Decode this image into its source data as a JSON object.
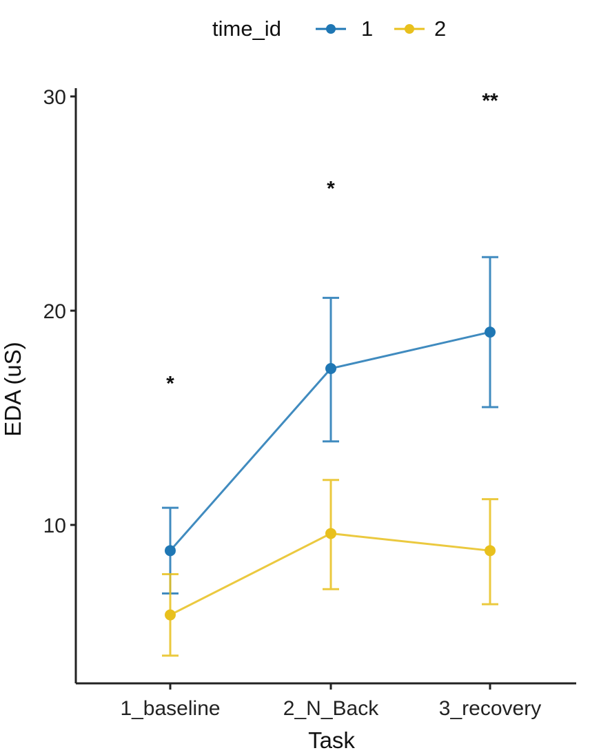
{
  "chart_data": {
    "type": "line",
    "categories": [
      "1_baseline",
      "2_N_Back",
      "3_recovery"
    ],
    "xlabel": "Task",
    "ylabel": "EDA (uS)",
    "ylim": [
      2.5,
      30
    ],
    "yticks": [
      10,
      20,
      30
    ],
    "grid": false,
    "legend": {
      "title": "time_id",
      "position": "top"
    },
    "series": [
      {
        "name": "1",
        "color": "#1f77b4",
        "values": [
          8.8,
          17.3,
          19.0
        ],
        "error_lower": [
          6.8,
          13.9,
          15.5
        ],
        "error_upper": [
          10.8,
          20.6,
          22.5
        ]
      },
      {
        "name": "2",
        "color": "#e8c01d",
        "values": [
          5.8,
          9.6,
          8.8
        ],
        "error_lower": [
          3.9,
          7.0,
          6.3
        ],
        "error_upper": [
          7.7,
          12.1,
          11.2
        ]
      }
    ],
    "annotations": [
      {
        "category": "1_baseline",
        "y": 16.8,
        "text": "*"
      },
      {
        "category": "2_N_Back",
        "y": 25.9,
        "text": "*"
      },
      {
        "category": "3_recovery",
        "y": 30.0,
        "text": "**"
      }
    ]
  }
}
